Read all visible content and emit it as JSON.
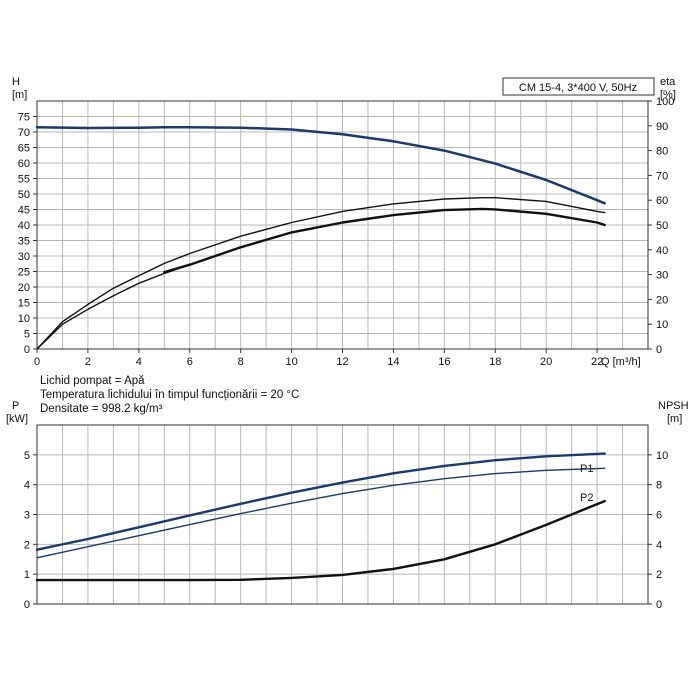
{
  "chart_data": [
    {
      "type": "line",
      "title": "CM 15-4, 3*400 V, 50Hz",
      "xlabel": "Q [m³/h]",
      "ylabel_left_symbol": "H",
      "ylabel_left_unit": "[m]",
      "ylabel_right_symbol": "eta",
      "ylabel_right_unit": "[%]",
      "xlim": [
        0,
        24
      ],
      "ylim": [
        0,
        80
      ],
      "y2lim": [
        0,
        100
      ],
      "x_ticks": [
        "0",
        "2",
        "4",
        "6",
        "8",
        "10",
        "12",
        "14",
        "16",
        "18",
        "20",
        "22"
      ],
      "y_ticks": [
        "0",
        "5",
        "10",
        "15",
        "20",
        "25",
        "30",
        "35",
        "40",
        "45",
        "50",
        "55",
        "60",
        "65",
        "70",
        "75"
      ],
      "y2_ticks": [
        "0",
        "10",
        "20",
        "30",
        "40",
        "50",
        "60",
        "70",
        "80",
        "90",
        "100"
      ],
      "grid": true,
      "series": [
        {
          "name": "H",
          "axis": "left",
          "color": "#1b3a6b",
          "stroke": 2.5,
          "x": [
            0,
            2,
            4,
            5,
            6,
            8,
            10,
            12,
            14,
            16,
            18,
            20,
            22,
            22.3
          ],
          "y": [
            71.5,
            71.3,
            71.4,
            71.5,
            71.5,
            71.4,
            70.8,
            69.3,
            67.0,
            64.0,
            59.8,
            54.5,
            48.0,
            47.0
          ]
        },
        {
          "name": "eta-1",
          "axis": "right",
          "color": "#111111",
          "stroke": 1.4,
          "x": [
            0,
            1,
            2,
            3,
            4,
            5,
            6,
            8,
            10,
            12,
            14,
            16,
            17.5,
            18,
            20,
            22,
            22.3
          ],
          "y": [
            0,
            11,
            18,
            24.5,
            29.5,
            34.5,
            38.5,
            45.5,
            51,
            55.5,
            58.5,
            60.5,
            61,
            61,
            59.5,
            55.5,
            55
          ]
        },
        {
          "name": "eta-2",
          "axis": "right",
          "color": "#111111",
          "stroke": 1.4,
          "x": [
            0,
            1,
            2,
            3,
            4,
            5,
            6,
            8,
            10,
            12,
            14,
            16,
            17.5,
            18,
            20,
            22,
            22.3
          ],
          "y": [
            0,
            10,
            16,
            21.5,
            26.5,
            30.5,
            34,
            41,
            47,
            51,
            54,
            56,
            56.5,
            56.3,
            54.5,
            51,
            50
          ]
        },
        {
          "name": "eta-3",
          "axis": "right",
          "color": "#111111",
          "stroke": 2.4,
          "x": [
            5,
            6,
            8,
            10,
            12,
            14,
            16,
            17.5,
            18,
            20,
            22,
            22.3
          ],
          "y": [
            31,
            34,
            41,
            47,
            51,
            54,
            56,
            56.5,
            56.3,
            54.5,
            51,
            50
          ]
        }
      ]
    },
    {
      "type": "line",
      "xlim": [
        0,
        24
      ],
      "ylabel_left_symbol": "P",
      "ylabel_left_unit": "[kW]",
      "ylabel_right_symbol": "NPSH",
      "ylabel_right_unit": "[m]",
      "ylim": [
        0,
        6
      ],
      "y2lim": [
        0,
        12
      ],
      "y_ticks": [
        "0",
        "1",
        "2",
        "3",
        "4",
        "5"
      ],
      "y2_ticks": [
        "0",
        "2",
        "4",
        "6",
        "8",
        "10"
      ],
      "grid": true,
      "series": [
        {
          "name": "P1",
          "axis": "left",
          "color": "#1b3a6b",
          "stroke": 2.4,
          "x": [
            0,
            2,
            4,
            6,
            8,
            10,
            12,
            14,
            16,
            18,
            20,
            22,
            22.3
          ],
          "y": [
            1.82,
            2.18,
            2.57,
            2.97,
            3.36,
            3.73,
            4.07,
            4.38,
            4.63,
            4.82,
            4.95,
            5.03,
            5.04
          ]
        },
        {
          "name": "P2",
          "axis": "left",
          "color": "#1b3a6b",
          "stroke": 1.4,
          "x": [
            0,
            2,
            4,
            6,
            8,
            10,
            12,
            14,
            16,
            18,
            20,
            22,
            22.3
          ],
          "y": [
            1.55,
            1.92,
            2.29,
            2.66,
            3.03,
            3.38,
            3.7,
            3.98,
            4.2,
            4.37,
            4.48,
            4.54,
            4.55
          ]
        },
        {
          "name": "NPSH",
          "axis": "right",
          "color": "#111111",
          "stroke": 2.4,
          "x": [
            0,
            2,
            4,
            6,
            8,
            10,
            12,
            14,
            16,
            18,
            20,
            22,
            22.3
          ],
          "y": [
            1.6,
            1.6,
            1.6,
            1.6,
            1.62,
            1.75,
            1.95,
            2.35,
            3.0,
            4.0,
            5.3,
            6.7,
            6.9
          ]
        }
      ]
    }
  ],
  "notes": [
    "Lichid pompat = Apă",
    "Temperatura lichidului în timpul funcționării = 20 °C",
    "Densitate = 998.2 kg/m³"
  ]
}
